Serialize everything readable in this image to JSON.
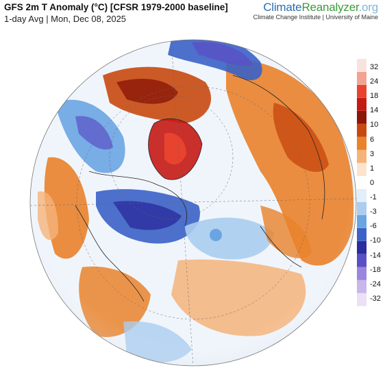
{
  "header": {
    "title": "GFS 2m T Anomaly (°C) [CFSR 1979-2000 baseline]",
    "subtitle": "1-day Avg | Mon, Dec 08, 2025"
  },
  "brand": {
    "name_part1": "Climate",
    "name_part2": "Reanalyzer",
    "name_part3": ".org",
    "tagline": "Climate Change Institute | University of Maine"
  },
  "legend": {
    "labels": [
      "32",
      "24",
      "18",
      "14",
      "10",
      "6",
      "3",
      "1",
      "0",
      "-1",
      "-3",
      "-6",
      "-10",
      "-14",
      "-18",
      "-24",
      "-32"
    ],
    "colors": [
      "#f9e3de",
      "#f2a392",
      "#e8432e",
      "#c41a14",
      "#8c1608",
      "#c8490f",
      "#e9822b",
      "#f5b37a",
      "#fbe3cc",
      "#fefefe",
      "#e4eefa",
      "#aacdf0",
      "#6aa5e3",
      "#3a62c7",
      "#2a2d9d",
      "#5a50c5",
      "#9a86dc",
      "#c9b6ea",
      "#ebe0f6"
    ]
  },
  "colors": {
    "warm_accent": "#c8490f",
    "cold_accent": "#2a2d9d",
    "ocean_white": "#f2f6fb"
  }
}
